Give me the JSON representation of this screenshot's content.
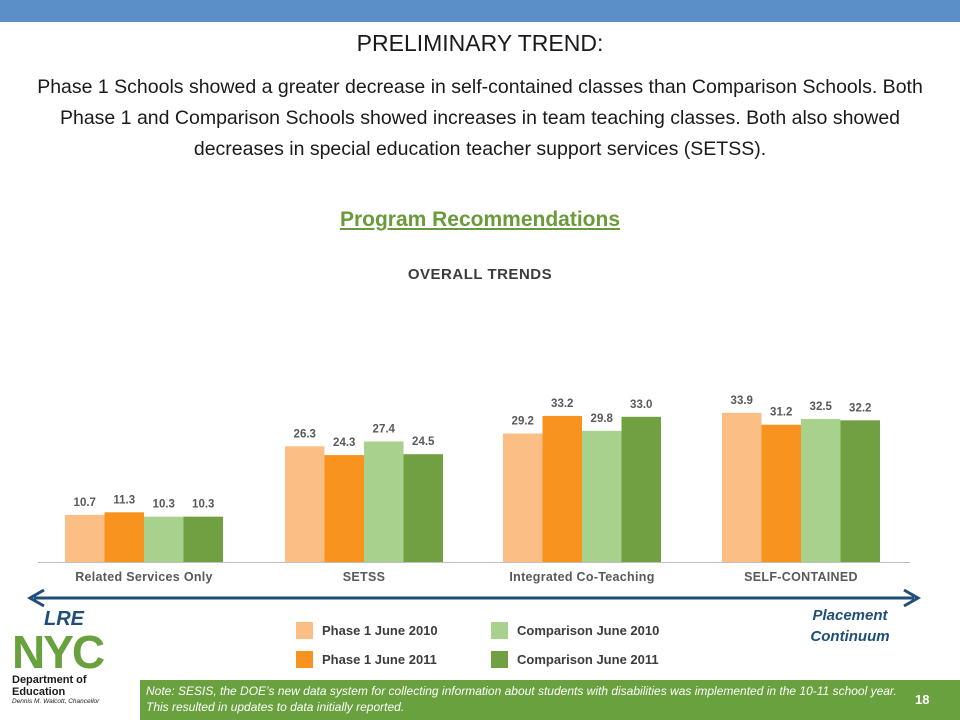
{
  "header": {
    "title": "PRELIMINARY TREND:",
    "body_text": "Phase 1 Schools showed a greater decrease in self-contained classes than Comparison Schools. Both Phase 1 and Comparison Schools showed increases in team teaching classes.  Both also showed decreases in special education teacher support services (SETSS).",
    "section_heading": "Program Recommendations"
  },
  "chart_data": {
    "type": "bar",
    "title": "OVERALL TRENDS",
    "categories": [
      "Related Services Only",
      "SETSS",
      "Integrated Co-Teaching",
      "SELF-CONTAINED"
    ],
    "series": [
      {
        "name": "Phase 1 June 2010",
        "color": "#fbbf86",
        "values": [
          10.7,
          26.3,
          29.2,
          33.9
        ]
      },
      {
        "name": "Phase 1 June 2011",
        "color": "#f7931e",
        "values": [
          11.3,
          24.3,
          33.2,
          31.2
        ]
      },
      {
        "name": "Comparison June 2010",
        "color": "#a9d18e",
        "values": [
          10.3,
          27.4,
          29.8,
          32.5
        ]
      },
      {
        "name": "Comparison June 2011",
        "color": "#70a041",
        "values": [
          10.3,
          24.5,
          33.0,
          32.2
        ]
      }
    ],
    "ylim": [
      0,
      40
    ],
    "grid": false,
    "legend_placement": "bottom"
  },
  "continuum": {
    "left_label": "LRE",
    "right_label": "Placement Continuum",
    "arrow_color": "#1f4e79"
  },
  "logo": {
    "wordmark": "NYC",
    "line1": "Department of",
    "line2": "Education",
    "chancellor": "Dennis M. Walcott, Chancellor"
  },
  "footer": {
    "note": "Note: SESIS, the DOE’s new data system for collecting information about students with disabilities was implemented in the 10-11 school year. This resulted in updates to data initially reported.",
    "page_number": "18"
  },
  "colors": {
    "top_bar": "#5b8fc7",
    "footer_bar": "#6aa13f",
    "heading_green": "#6a9a3a"
  }
}
